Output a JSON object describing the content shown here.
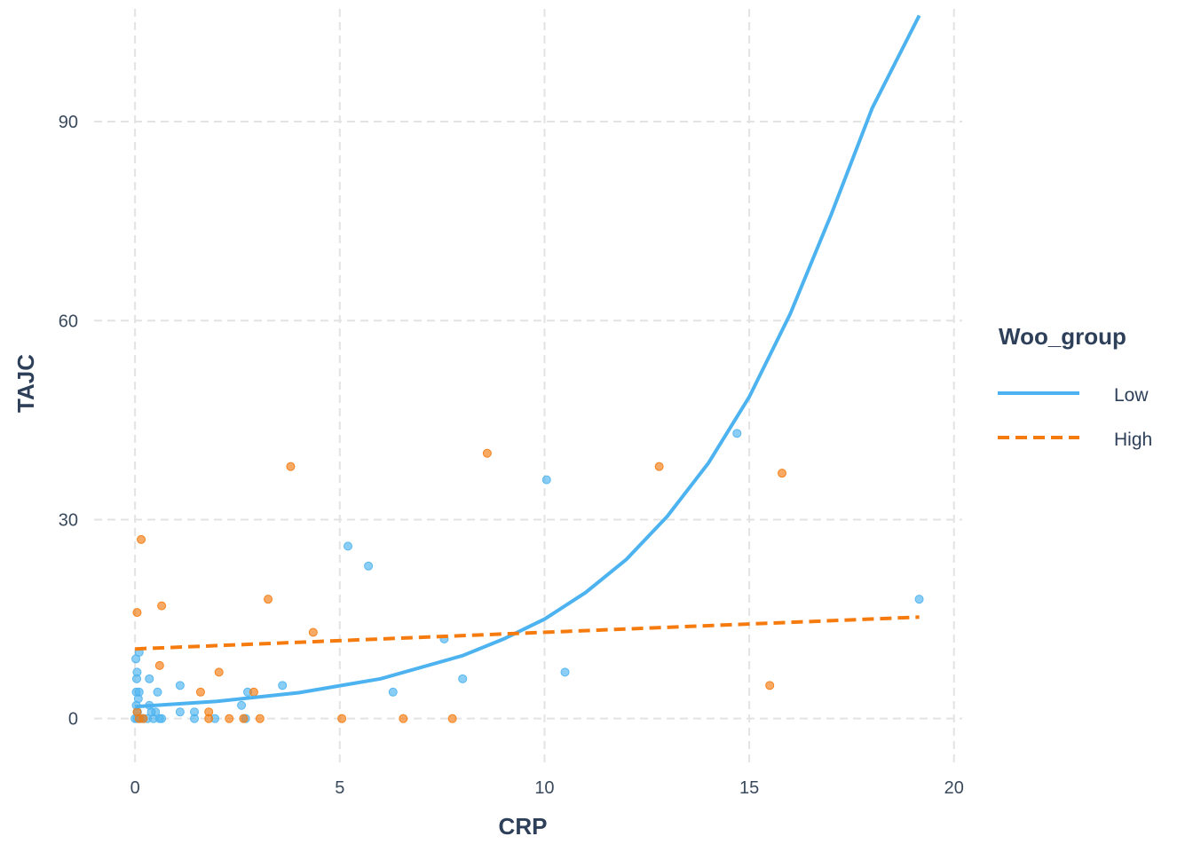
{
  "chart_data": {
    "type": "scatter",
    "xlabel": "CRP",
    "ylabel": "TAJC",
    "xlim": [
      -1,
      20.2
    ],
    "ylim": [
      -7,
      107
    ],
    "x_ticks": [
      0,
      5,
      10,
      15,
      20
    ],
    "y_ticks": [
      0,
      30,
      60,
      90
    ],
    "grid": true,
    "grid_style": "dashed",
    "legend": {
      "title": "Woo_group",
      "position": "right",
      "entries": [
        {
          "label": "Low",
          "color": "#4db3f0",
          "line_style": "solid"
        },
        {
          "label": "High",
          "color": "#f57b0f",
          "line_style": "dashed"
        }
      ]
    },
    "series": [
      {
        "name": "Low",
        "color": "#4db3f0",
        "points": [
          [
            0.0,
            0
          ],
          [
            0.02,
            9
          ],
          [
            0.03,
            2
          ],
          [
            0.03,
            4
          ],
          [
            0.04,
            6
          ],
          [
            0.05,
            7
          ],
          [
            0.05,
            0
          ],
          [
            0.06,
            1
          ],
          [
            0.08,
            3
          ],
          [
            0.1,
            10
          ],
          [
            0.1,
            4
          ],
          [
            0.12,
            0
          ],
          [
            0.2,
            0
          ],
          [
            0.3,
            0
          ],
          [
            0.35,
            2
          ],
          [
            0.35,
            6
          ],
          [
            0.4,
            1
          ],
          [
            0.45,
            0
          ],
          [
            0.5,
            1
          ],
          [
            0.55,
            4
          ],
          [
            0.6,
            0
          ],
          [
            0.65,
            0
          ],
          [
            1.1,
            5
          ],
          [
            1.1,
            1
          ],
          [
            1.45,
            1
          ],
          [
            1.45,
            0
          ],
          [
            1.95,
            0
          ],
          [
            2.6,
            2
          ],
          [
            2.7,
            0
          ],
          [
            2.75,
            4
          ],
          [
            3.6,
            5
          ],
          [
            5.2,
            26
          ],
          [
            5.7,
            23
          ],
          [
            6.3,
            4
          ],
          [
            7.55,
            12
          ],
          [
            8.0,
            6
          ],
          [
            10.05,
            36
          ],
          [
            10.5,
            7
          ],
          [
            14.7,
            43
          ],
          [
            19.15,
            18
          ]
        ],
        "fit": [
          [
            0,
            1.8
          ],
          [
            2,
            2.6
          ],
          [
            4,
            3.9
          ],
          [
            6,
            6.0
          ],
          [
            8,
            9.5
          ],
          [
            9,
            12.0
          ],
          [
            10,
            15.0
          ],
          [
            11,
            19.0
          ],
          [
            12,
            24.0
          ],
          [
            13,
            30.5
          ],
          [
            14,
            38.5
          ],
          [
            15,
            48.5
          ],
          [
            16,
            61
          ],
          [
            17,
            76
          ],
          [
            18,
            92
          ],
          [
            19.15,
            106
          ]
        ]
      },
      {
        "name": "High",
        "color": "#f57b0f",
        "points": [
          [
            0.05,
            16
          ],
          [
            0.05,
            1
          ],
          [
            0.1,
            0
          ],
          [
            0.15,
            27
          ],
          [
            0.2,
            0
          ],
          [
            0.6,
            8
          ],
          [
            0.65,
            17
          ],
          [
            1.6,
            4
          ],
          [
            1.8,
            1
          ],
          [
            1.8,
            0
          ],
          [
            2.05,
            7
          ],
          [
            2.3,
            0
          ],
          [
            2.65,
            0
          ],
          [
            2.9,
            4
          ],
          [
            3.05,
            0
          ],
          [
            3.25,
            18
          ],
          [
            3.8,
            38
          ],
          [
            4.35,
            13
          ],
          [
            5.05,
            0
          ],
          [
            6.55,
            0
          ],
          [
            7.75,
            0
          ],
          [
            8.6,
            40
          ],
          [
            12.8,
            38
          ],
          [
            15.5,
            5
          ],
          [
            15.8,
            37
          ]
        ],
        "fit": [
          [
            0,
            10.5
          ],
          [
            19.15,
            15.3
          ]
        ]
      }
    ]
  }
}
